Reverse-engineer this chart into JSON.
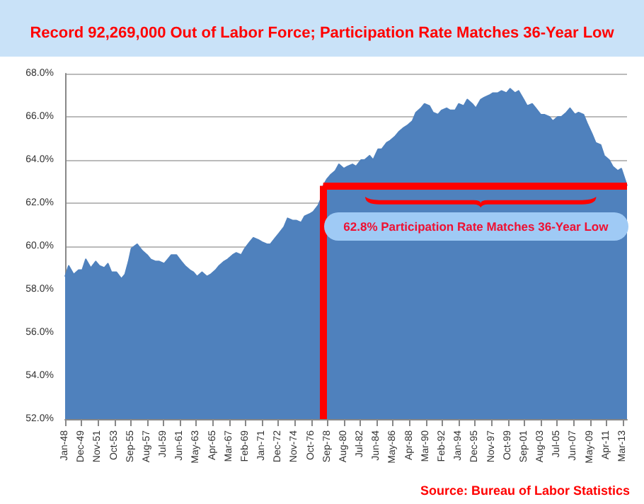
{
  "chart_data": {
    "type": "area",
    "title": "Record 92,269,000 Out of Labor Force; Participation Rate Matches 36-Year Low",
    "annotations": [
      "62.8% Participation Rate Matches 36-Year Low",
      "Source: Bureau of Labor Statistics"
    ],
    "x": [
      "1948-01",
      "1948-06",
      "1949-01",
      "1949-08",
      "1950-01",
      "1950-06",
      "1951-01",
      "1951-08",
      "1952-01",
      "1952-08",
      "1953-01",
      "1953-06",
      "1954-01",
      "1954-08",
      "1955-01",
      "1955-06",
      "1955-10",
      "1956-06",
      "1957-01",
      "1957-08",
      "1958-01",
      "1958-08",
      "1959-01",
      "1959-08",
      "1960-01",
      "1960-06",
      "1961-01",
      "1961-08",
      "1962-01",
      "1962-08",
      "1963-01",
      "1963-06",
      "1964-01",
      "1964-08",
      "1965-01",
      "1965-08",
      "1966-01",
      "1966-08",
      "1967-01",
      "1967-08",
      "1968-01",
      "1968-08",
      "1969-01",
      "1969-08",
      "1970-01",
      "1970-08",
      "1971-01",
      "1971-08",
      "1972-01",
      "1972-08",
      "1973-01",
      "1973-08",
      "1974-01",
      "1974-08",
      "1975-01",
      "1975-08",
      "1976-01",
      "1976-08",
      "1977-01",
      "1977-08",
      "1978-01",
      "1978-03",
      "1978-08",
      "1979-01",
      "1979-08",
      "1980-01",
      "1980-08",
      "1981-01",
      "1981-08",
      "1982-01",
      "1982-08",
      "1983-01",
      "1983-08",
      "1984-01",
      "1984-08",
      "1985-01",
      "1985-08",
      "1986-01",
      "1986-08",
      "1987-01",
      "1987-08",
      "1988-01",
      "1988-08",
      "1989-01",
      "1989-08",
      "1990-01",
      "1990-08",
      "1991-01",
      "1991-08",
      "1992-01",
      "1992-08",
      "1993-01",
      "1993-08",
      "1994-01",
      "1994-08",
      "1995-01",
      "1995-08",
      "1996-01",
      "1996-08",
      "1997-01",
      "1997-08",
      "1998-01",
      "1998-08",
      "1999-01",
      "1999-08",
      "2000-01",
      "2000-08",
      "2001-01",
      "2001-08",
      "2002-01",
      "2002-08",
      "2003-01",
      "2003-08",
      "2004-01",
      "2004-08",
      "2005-01",
      "2005-08",
      "2006-01",
      "2006-08",
      "2007-01",
      "2007-08",
      "2008-01",
      "2008-08",
      "2009-01",
      "2009-08",
      "2010-01",
      "2010-08",
      "2011-01",
      "2011-08",
      "2012-01",
      "2012-08",
      "2013-01",
      "2013-09"
    ],
    "values": [
      58.6,
      59.1,
      58.7,
      58.9,
      58.9,
      59.4,
      59.0,
      59.3,
      59.1,
      59.0,
      59.2,
      58.8,
      58.8,
      58.5,
      58.7,
      59.3,
      59.9,
      60.1,
      59.8,
      59.6,
      59.4,
      59.3,
      59.3,
      59.2,
      59.4,
      59.6,
      59.6,
      59.3,
      59.1,
      58.9,
      58.8,
      58.6,
      58.8,
      58.6,
      58.7,
      58.9,
      59.1,
      59.3,
      59.4,
      59.6,
      59.7,
      59.6,
      59.9,
      60.2,
      60.4,
      60.3,
      60.2,
      60.1,
      60.1,
      60.4,
      60.6,
      60.9,
      61.3,
      61.2,
      61.2,
      61.1,
      61.4,
      61.5,
      61.6,
      61.9,
      62.3,
      62.8,
      63.1,
      63.3,
      63.5,
      63.8,
      63.6,
      63.7,
      63.8,
      63.7,
      64.0,
      64.0,
      64.2,
      64.0,
      64.5,
      64.5,
      64.8,
      64.9,
      65.1,
      65.3,
      65.5,
      65.6,
      65.8,
      66.2,
      66.4,
      66.6,
      66.5,
      66.2,
      66.1,
      66.3,
      66.4,
      66.3,
      66.3,
      66.6,
      66.5,
      66.8,
      66.6,
      66.4,
      66.8,
      66.9,
      67.0,
      67.1,
      67.1,
      67.2,
      67.1,
      67.3,
      67.1,
      67.2,
      66.8,
      66.5,
      66.6,
      66.4,
      66.1,
      66.1,
      66.0,
      65.8,
      66.0,
      66.0,
      66.2,
      66.4,
      66.1,
      66.2,
      66.1,
      65.7,
      65.2,
      64.8,
      64.7,
      64.2,
      64.0,
      63.7,
      63.5,
      63.6,
      62.8
    ],
    "color": "#4f81bd",
    "ylim": [
      52,
      68
    ],
    "yticks": [
      {
        "value": 52,
        "label": "52.0%"
      },
      {
        "value": 54,
        "label": "54.0%"
      },
      {
        "value": 56,
        "label": "56.0%"
      },
      {
        "value": 58,
        "label": "58.0%"
      },
      {
        "value": 60,
        "label": "60.0%"
      },
      {
        "value": 62,
        "label": "62.0%"
      },
      {
        "value": 64,
        "label": "64.0%"
      },
      {
        "value": 66,
        "label": "66.0%"
      },
      {
        "value": 68,
        "label": "68.0%"
      }
    ],
    "xlim": [
      "1948-01",
      "2013-09"
    ],
    "xticks": [
      {
        "value": "1948-01",
        "label": "Jan-48"
      },
      {
        "value": "1949-12",
        "label": "Dec-49"
      },
      {
        "value": "1951-11",
        "label": "Nov-51"
      },
      {
        "value": "1953-10",
        "label": "Oct-53"
      },
      {
        "value": "1955-09",
        "label": "Sep-55"
      },
      {
        "value": "1957-08",
        "label": "Aug-57"
      },
      {
        "value": "1959-07",
        "label": "Jul-59"
      },
      {
        "value": "1961-06",
        "label": "Jun-61"
      },
      {
        "value": "1963-05",
        "label": "May-63"
      },
      {
        "value": "1965-04",
        "label": "Apr-65"
      },
      {
        "value": "1967-03",
        "label": "Mar-67"
      },
      {
        "value": "1969-02",
        "label": "Feb-69"
      },
      {
        "value": "1971-01",
        "label": "Jan-71"
      },
      {
        "value": "1972-12",
        "label": "Dec-72"
      },
      {
        "value": "1974-11",
        "label": "Nov-74"
      },
      {
        "value": "1976-10",
        "label": "Oct-76"
      },
      {
        "value": "1978-09",
        "label": "Sep-78"
      },
      {
        "value": "1980-08",
        "label": "Aug-80"
      },
      {
        "value": "1982-07",
        "label": "Jul-82"
      },
      {
        "value": "1984-06",
        "label": "Jun-84"
      },
      {
        "value": "1986-05",
        "label": "May-86"
      },
      {
        "value": "1988-04",
        "label": "Apr-88"
      },
      {
        "value": "1990-03",
        "label": "Mar-90"
      },
      {
        "value": "1992-02",
        "label": "Feb-92"
      },
      {
        "value": "1994-01",
        "label": "Jan-94"
      },
      {
        "value": "1995-12",
        "label": "Dec-95"
      },
      {
        "value": "1997-11",
        "label": "Nov-97"
      },
      {
        "value": "1999-10",
        "label": "Oct-99"
      },
      {
        "value": "2001-09",
        "label": "Sep-01"
      },
      {
        "value": "2003-08",
        "label": "Aug-03"
      },
      {
        "value": "2005-07",
        "label": "Jul-05"
      },
      {
        "value": "2007-06",
        "label": "Jun-07"
      },
      {
        "value": "2009-05",
        "label": "May-09"
      },
      {
        "value": "2011-04",
        "label": "Apr-11"
      },
      {
        "value": "2013-03",
        "label": "Mar-13"
      }
    ],
    "ref_lines": [
      {
        "axis": "y",
        "value": 62.8,
        "color": "#ff0000"
      },
      {
        "axis": "x",
        "value": "1978-03",
        "color": "#ff0000"
      }
    ],
    "grid": "y",
    "marker": "none"
  }
}
